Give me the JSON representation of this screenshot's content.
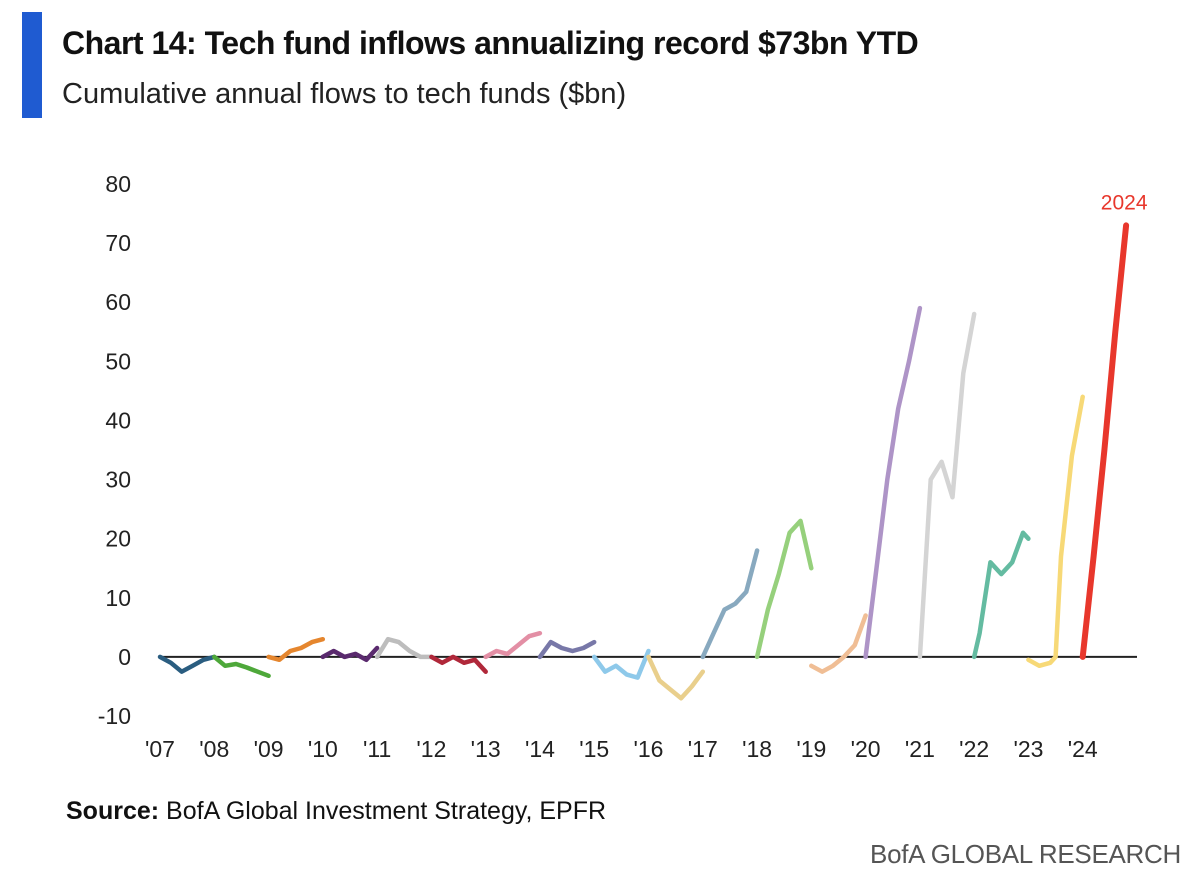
{
  "accent_color": "#1f5bd1",
  "header": {
    "title": "Chart 14: Tech fund inflows annualizing record $73bn YTD",
    "subtitle": "Cumulative annual flows to tech funds ($bn)"
  },
  "footer": {
    "source_label": "Source:",
    "source_text": "BofA Global Investment Strategy, EPFR",
    "brand": "BofA GLOBAL RESEARCH"
  },
  "chart_data": {
    "type": "line",
    "title": "Chart 14: Tech fund inflows annualizing record $73bn YTD",
    "subtitle": "Cumulative annual flows to tech funds ($bn)",
    "xlabel": "",
    "ylabel": "",
    "ylim": [
      -10,
      80
    ],
    "xlim": [
      2007,
      2025
    ],
    "yticks": [
      80,
      70,
      60,
      50,
      40,
      30,
      20,
      10,
      0,
      -10
    ],
    "xticks": [
      {
        "label": "'07",
        "value": 2007
      },
      {
        "label": "'08",
        "value": 2008
      },
      {
        "label": "'09",
        "value": 2009
      },
      {
        "label": "'10",
        "value": 2010
      },
      {
        "label": "'11",
        "value": 2011
      },
      {
        "label": "'12",
        "value": 2012
      },
      {
        "label": "'13",
        "value": 2013
      },
      {
        "label": "'14",
        "value": 2014
      },
      {
        "label": "'15",
        "value": 2015
      },
      {
        "label": "'16",
        "value": 2016
      },
      {
        "label": "'17",
        "value": 2017
      },
      {
        "label": "'18",
        "value": 2018
      },
      {
        "label": "'19",
        "value": 2019
      },
      {
        "label": "'20",
        "value": 2020
      },
      {
        "label": "'21",
        "value": 2021
      },
      {
        "label": "'22",
        "value": 2022
      },
      {
        "label": "'23",
        "value": 2023
      },
      {
        "label": "'24",
        "value": 2024
      }
    ],
    "annotation": {
      "text": "2024",
      "x": 2024.8,
      "y": 73,
      "color": "#e8372c"
    },
    "grid": false,
    "series": [
      {
        "name": "2007",
        "color": "#2a5d80",
        "x": [
          2007.0,
          2007.2,
          2007.4,
          2007.6,
          2007.8,
          2008.0
        ],
        "y": [
          0,
          -1,
          -2.5,
          -1.5,
          -0.5,
          0
        ]
      },
      {
        "name": "2008",
        "color": "#4ea83a",
        "x": [
          2008.0,
          2008.2,
          2008.4,
          2008.6,
          2008.8,
          2009.0
        ],
        "y": [
          0,
          -1.5,
          -1.2,
          -1.8,
          -2.5,
          -3.2
        ]
      },
      {
        "name": "2009",
        "color": "#e5862e",
        "x": [
          2009.0,
          2009.2,
          2009.4,
          2009.6,
          2009.8,
          2010.0
        ],
        "y": [
          0,
          -0.5,
          1,
          1.5,
          2.5,
          3
        ]
      },
      {
        "name": "2010",
        "color": "#5a2a6e",
        "x": [
          2010.0,
          2010.2,
          2010.4,
          2010.6,
          2010.8,
          2011.0
        ],
        "y": [
          0,
          1,
          0,
          0.5,
          -0.5,
          1.5
        ]
      },
      {
        "name": "2011",
        "color": "#bdbdbd",
        "x": [
          2011.0,
          2011.2,
          2011.4,
          2011.6,
          2011.8,
          2012.0
        ],
        "y": [
          0,
          3,
          2.5,
          1,
          0,
          0
        ]
      },
      {
        "name": "2012",
        "color": "#b0283a",
        "x": [
          2012.0,
          2012.2,
          2012.4,
          2012.6,
          2012.8,
          2013.0
        ],
        "y": [
          0,
          -1,
          0,
          -1,
          -0.5,
          -2.5
        ]
      },
      {
        "name": "2013",
        "color": "#e38fa5",
        "x": [
          2013.0,
          2013.2,
          2013.4,
          2013.6,
          2013.8,
          2014.0
        ],
        "y": [
          0,
          1,
          0.5,
          2,
          3.5,
          4
        ]
      },
      {
        "name": "2014",
        "color": "#7878a8",
        "x": [
          2014.0,
          2014.2,
          2014.4,
          2014.6,
          2014.8,
          2015.0
        ],
        "y": [
          0,
          2.5,
          1.5,
          1,
          1.5,
          2.5
        ]
      },
      {
        "name": "2015",
        "color": "#8ec9ea",
        "x": [
          2015.0,
          2015.2,
          2015.4,
          2015.6,
          2015.8,
          2016.0
        ],
        "y": [
          0,
          -2.5,
          -1.5,
          -3,
          -3.5,
          1
        ]
      },
      {
        "name": "2016",
        "color": "#e9cf8c",
        "x": [
          2016.0,
          2016.2,
          2016.4,
          2016.6,
          2016.8,
          2017.0
        ],
        "y": [
          0,
          -4,
          -5.5,
          -7,
          -5,
          -2.5
        ]
      },
      {
        "name": "2017",
        "color": "#88a9bf",
        "x": [
          2017.0,
          2017.2,
          2017.4,
          2017.6,
          2017.8,
          2018.0
        ],
        "y": [
          0,
          4,
          8,
          9,
          11,
          18
        ]
      },
      {
        "name": "2018",
        "color": "#96d07c",
        "x": [
          2018.0,
          2018.2,
          2018.4,
          2018.6,
          2018.8,
          2019.0
        ],
        "y": [
          0,
          8,
          14,
          21,
          23,
          15
        ]
      },
      {
        "name": "2019",
        "color": "#f0be95",
        "x": [
          2019.0,
          2019.2,
          2019.4,
          2019.6,
          2019.8,
          2020.0
        ],
        "y": [
          -1.5,
          -2.5,
          -1.5,
          0,
          2,
          7
        ]
      },
      {
        "name": "2020",
        "color": "#ae94c7",
        "x": [
          2020.0,
          2020.2,
          2020.4,
          2020.6,
          2020.8,
          2021.0
        ],
        "y": [
          0,
          15,
          30,
          42,
          50,
          59
        ]
      },
      {
        "name": "2021",
        "color": "#d4d4d4",
        "x": [
          2021.0,
          2021.2,
          2021.4,
          2021.6,
          2021.8,
          2022.0
        ],
        "y": [
          0,
          30,
          33,
          27,
          48,
          58
        ]
      },
      {
        "name": "2022",
        "color": "#64bba1",
        "x": [
          2022.0,
          2022.1,
          2022.3,
          2022.5,
          2022.7,
          2022.9,
          2023.0
        ],
        "y": [
          0,
          4,
          16,
          14,
          16,
          21,
          20
        ]
      },
      {
        "name": "2023",
        "color": "#f7d977",
        "x": [
          2023.0,
          2023.2,
          2023.4,
          2023.5,
          2023.6,
          2023.8,
          2024.0
        ],
        "y": [
          -0.5,
          -1.5,
          -1,
          0,
          17,
          34,
          44
        ]
      },
      {
        "name": "2024",
        "color": "#e8372c",
        "x": [
          2024.0,
          2024.2,
          2024.4,
          2024.6,
          2024.8
        ],
        "y": [
          0,
          17,
          35,
          55,
          73
        ]
      }
    ]
  }
}
